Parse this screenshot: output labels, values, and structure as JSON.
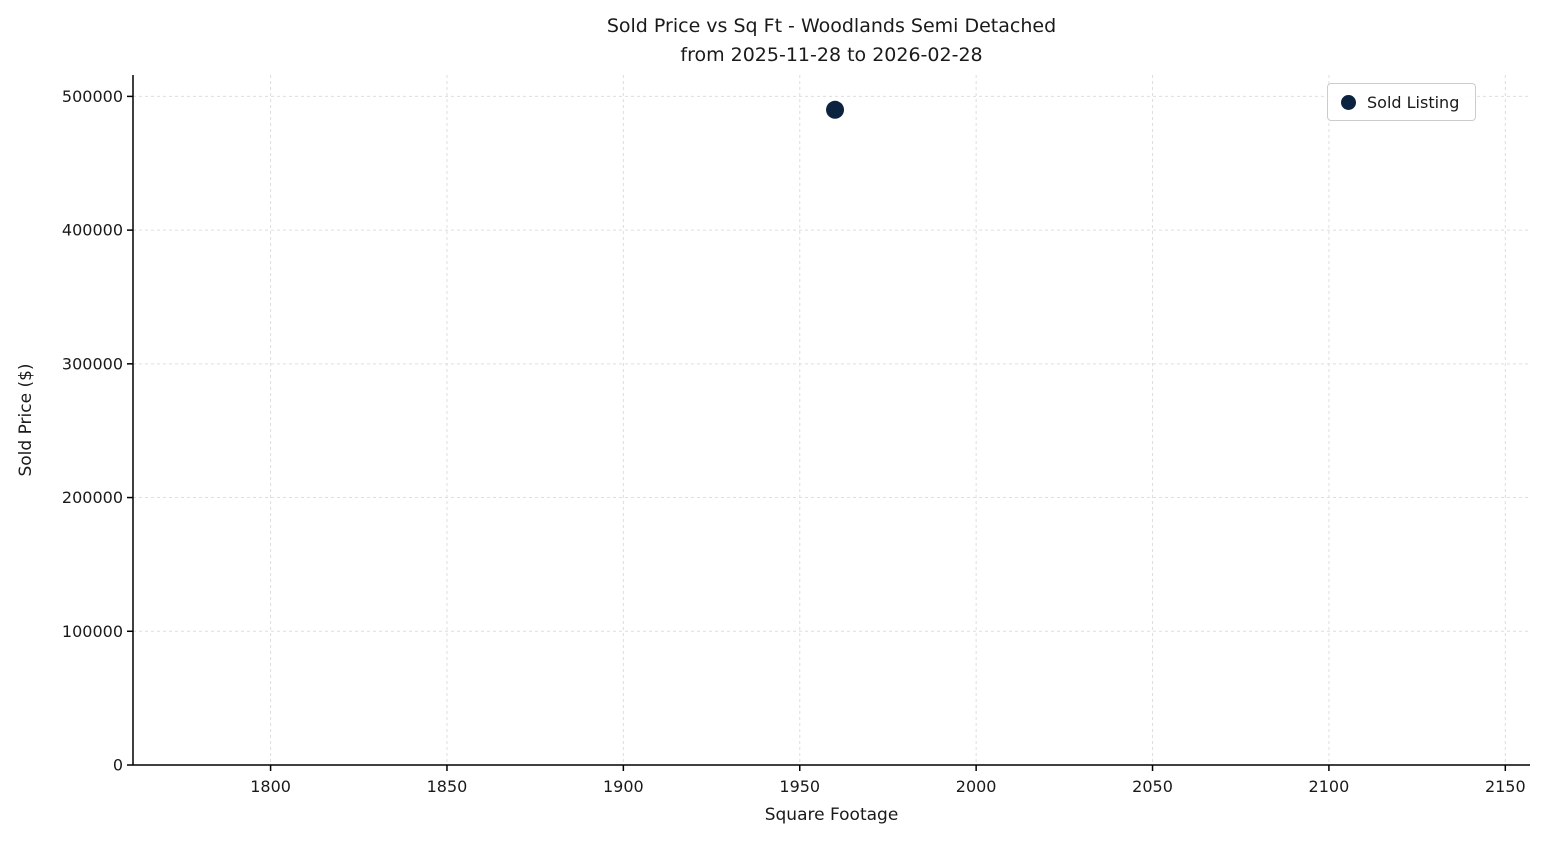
{
  "title": {
    "line1": "Sold Price vs Sq Ft - Woodlands Semi Detached",
    "line2": "from 2025-11-28 to 2026-02-28"
  },
  "chart_data": {
    "type": "scatter",
    "title": "Sold Price vs Sq Ft - Woodlands Semi Detached\nfrom 2025-11-28 to 2026-02-28",
    "xlabel": "Square Footage",
    "ylabel": "Sold Price ($)",
    "xlim": [
      1761,
      2157
    ],
    "ylim": [
      0,
      516000
    ],
    "xticks": [
      1800,
      1850,
      1900,
      1950,
      2000,
      2050,
      2100,
      2150
    ],
    "yticks": [
      0,
      100000,
      200000,
      300000,
      400000,
      500000
    ],
    "grid": true,
    "grid_style": "dashed",
    "legend": {
      "position": "upper right",
      "entries": [
        {
          "label": "Sold Listing",
          "marker": "circle",
          "color": "#0c2340"
        }
      ]
    },
    "series": [
      {
        "name": "Sold Listing",
        "color": "#0c2340",
        "marker_size": 9,
        "points": [
          {
            "x": 1960,
            "y": 490000
          }
        ]
      }
    ]
  },
  "colors": {
    "point": "#0c2340",
    "grid": "#dedede",
    "spine": "#000000",
    "text": "#1a1a1a",
    "background": "#ffffff",
    "legend_border": "#cccccc"
  }
}
